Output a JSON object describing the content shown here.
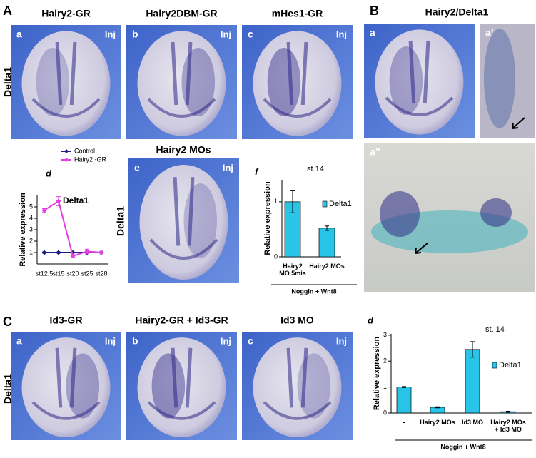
{
  "panel_A": {
    "letter": "A",
    "row_label": "Delta1",
    "images": [
      {
        "label": "a",
        "title": "Hairy2-GR",
        "tag": "Inj"
      },
      {
        "label": "b",
        "title": "Hairy2DBM-GR",
        "tag": "Inj"
      },
      {
        "label": "c",
        "title": "mHes1-GR",
        "tag": "Inj"
      }
    ],
    "chart_d": {
      "type": "line",
      "label": "d",
      "title": "Delta1",
      "y_label": "Relative expression",
      "categories": [
        "st12.5",
        "st15",
        "st20",
        "st25",
        "st28"
      ],
      "series": [
        {
          "name": "Control",
          "color": "#1c1c80",
          "values": [
            1,
            1,
            1,
            1,
            1
          ],
          "errors": [
            0.05,
            0.05,
            0.05,
            0.05,
            0.05
          ]
        },
        {
          "name": "Hairy2 -GR",
          "color": "#e040e0",
          "values": [
            4.7,
            5.5,
            0.7,
            1.1,
            1.0
          ],
          "errors": [
            0.15,
            0.4,
            0.1,
            0.2,
            0.2
          ]
        }
      ],
      "ylim": [
        0,
        6
      ],
      "yticks": [
        1,
        2,
        3,
        4,
        5
      ]
    },
    "image_e": {
      "label": "e",
      "title": "Hairy2 MOs",
      "tag": "Inj",
      "row_label": "Delta1"
    },
    "chart_f": {
      "type": "bar",
      "label": "f",
      "title": "st.14",
      "legend": "Delta1",
      "color": "#29c5e8",
      "y_label": "Relative expression",
      "categories": [
        "Hairy2 MO 5mis",
        "Hairy2 MOs"
      ],
      "values": [
        1,
        0.52
      ],
      "errors": [
        0.2,
        0.04
      ],
      "ylim": [
        0,
        1.4
      ],
      "yticks": [
        0,
        1
      ],
      "group_label": "Noggin + Wnt8"
    }
  },
  "panel_B": {
    "letter": "B",
    "title": "Hairy2/Delta1",
    "images": [
      {
        "label": "a"
      },
      {
        "label": "a’"
      },
      {
        "label": "a’’"
      }
    ]
  },
  "panel_C": {
    "letter": "C",
    "row_label": "Delta1",
    "images": [
      {
        "label": "a",
        "title": "Id3-GR",
        "tag": "Inj"
      },
      {
        "label": "b",
        "title": "Hairy2-GR + Id3-GR",
        "tag": "Inj"
      },
      {
        "label": "c",
        "title": "Id3 MO",
        "tag": "Inj"
      }
    ],
    "chart_d": {
      "type": "bar",
      "label": "d",
      "title": "st. 14",
      "legend": "Delta1",
      "color": "#29c5e8",
      "y_label": "Relative expression",
      "categories": [
        "-",
        "Hairy2 MOs",
        "Id3 MO",
        "Hairy2 MOs + Id3 MO"
      ],
      "values": [
        1,
        0.22,
        2.45,
        0.05
      ],
      "errors": [
        0.02,
        0.02,
        0.3,
        0.02
      ],
      "ylim": [
        0,
        3.05
      ],
      "yticks": [
        0,
        1,
        2,
        3
      ],
      "group_label": "Noggin + Wnt8"
    }
  }
}
